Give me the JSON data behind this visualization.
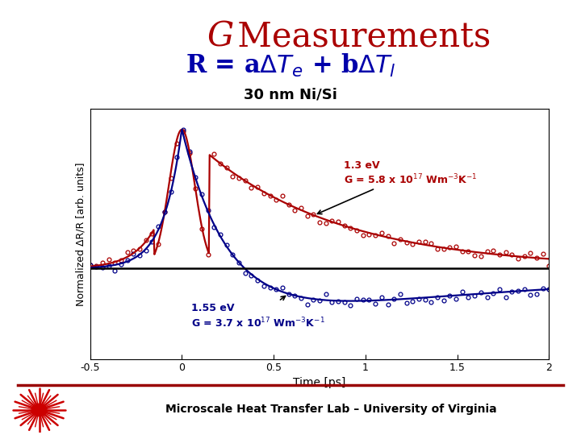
{
  "title_G": "G",
  "title_rest": " Measurements",
  "subtitle_tex": "R = a$\\Delta T_e$ + b$\\Delta T_l$",
  "label_30nm": "30 nm Ni/Si",
  "xlabel": "Time [ps]",
  "ylabel": "Normalized ΔR/R [arb. units]",
  "xlim": [
    -0.5,
    2.0
  ],
  "xticks": [
    -0.5,
    0,
    0.5,
    1,
    1.5,
    2
  ],
  "xtick_labels": [
    "-0.5",
    "0",
    "0.5",
    "1",
    "1.5",
    "2"
  ],
  "background": "#ffffff",
  "footer": "Microscale Heat Transfer Lab – University of Virginia",
  "red_color": "#aa0000",
  "blue_color": "#000088",
  "title_color": "#aa0000",
  "subtitle_color": "#0000aa",
  "footer_line_color": "#990000"
}
